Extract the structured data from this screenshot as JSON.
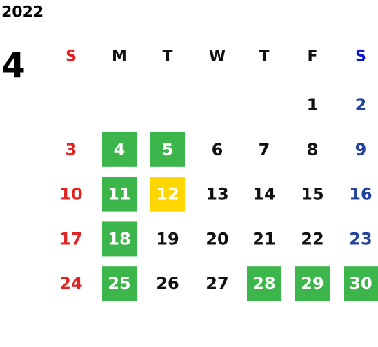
{
  "year": "2022",
  "month": "4",
  "weekdays": [
    "S",
    "M",
    "T",
    "W",
    "T",
    "F",
    "S"
  ],
  "weeks": [
    [
      null,
      null,
      null,
      null,
      null,
      {
        "day": "1"
      },
      {
        "day": "2"
      }
    ],
    [
      {
        "day": "3"
      },
      {
        "day": "4",
        "bg": "#3cb54a"
      },
      {
        "day": "5",
        "bg": "#3cb54a"
      },
      {
        "day": "6"
      },
      {
        "day": "7"
      },
      {
        "day": "8"
      },
      {
        "day": "9"
      }
    ],
    [
      {
        "day": "10"
      },
      {
        "day": "11",
        "bg": "#3cb54a"
      },
      {
        "day": "12",
        "bg": "#ffd700"
      },
      {
        "day": "13"
      },
      {
        "day": "14"
      },
      {
        "day": "15"
      },
      {
        "day": "16"
      }
    ],
    [
      {
        "day": "17"
      },
      {
        "day": "18",
        "bg": "#3cb54a"
      },
      {
        "day": "19"
      },
      {
        "day": "20"
      },
      {
        "day": "21"
      },
      {
        "day": "22"
      },
      {
        "day": "23"
      }
    ],
    [
      {
        "day": "24"
      },
      {
        "day": "25",
        "bg": "#3cb54a"
      },
      {
        "day": "26"
      },
      {
        "day": "27"
      },
      {
        "day": "28",
        "bg": "#3cb54a"
      },
      {
        "day": "29",
        "bg": "#3cb54a"
      },
      {
        "day": "30",
        "bg": "#3cb54a"
      }
    ]
  ]
}
